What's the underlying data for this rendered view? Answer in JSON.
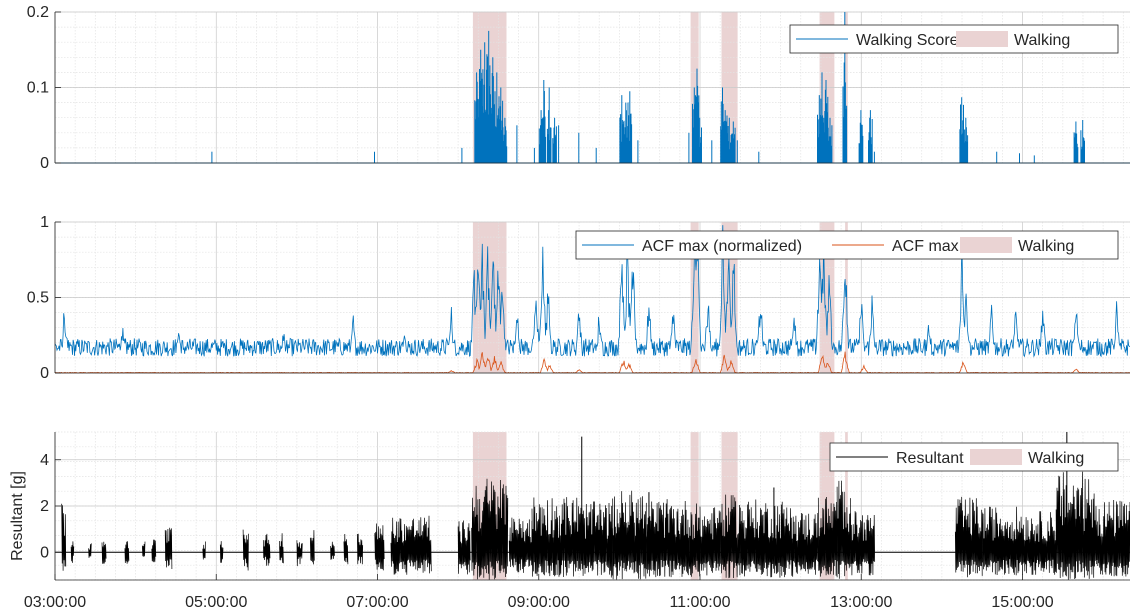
{
  "chart_data": [
    {
      "type": "line",
      "xlim": [
        "03:00:00",
        "16:20:00"
      ],
      "ylim": [
        0,
        0.2
      ],
      "yticks": [
        "0",
        "0.1",
        "0.2"
      ],
      "ytick_values": [
        0,
        0.1,
        0.2
      ],
      "ylabel": "",
      "grid": true,
      "legend_placement": "top-right",
      "legend": [
        "Walking Score",
        "Walking"
      ],
      "walking_intervals": [
        [
          "08:11",
          "08:36"
        ],
        [
          "10:53",
          "10:59"
        ],
        [
          "11:16",
          "11:28"
        ],
        [
          "12:29",
          "12:40"
        ],
        [
          "12:48",
          "12:50"
        ]
      ],
      "series": [
        {
          "name": "Walking Score",
          "color": "#0072BD",
          "peaks": [
            [
              "04:57",
              0.015
            ],
            [
              "06:58",
              0.015
            ],
            [
              "08:03",
              0.02
            ],
            [
              "08:14",
              0.12
            ],
            [
              "08:17",
              0.15
            ],
            [
              "08:20",
              0.16
            ],
            [
              "08:23",
              0.175
            ],
            [
              "08:26",
              0.14
            ],
            [
              "08:29",
              0.12
            ],
            [
              "08:32",
              0.1
            ],
            [
              "08:35",
              0.06
            ],
            [
              "08:44",
              0.05
            ],
            [
              "08:57",
              0.02
            ],
            [
              "09:02",
              0.07
            ],
            [
              "09:04",
              0.11
            ],
            [
              "09:08",
              0.1
            ],
            [
              "09:12",
              0.06
            ],
            [
              "09:15",
              0.05
            ],
            [
              "09:30",
              0.04
            ],
            [
              "09:43",
              0.02
            ],
            [
              "10:02",
              0.09
            ],
            [
              "10:05",
              0.08
            ],
            [
              "10:08",
              0.095
            ],
            [
              "10:14",
              0.03
            ],
            [
              "10:52",
              0.04
            ],
            [
              "10:56",
              0.1
            ],
            [
              "10:58",
              0.125
            ],
            [
              "11:00",
              0.06
            ],
            [
              "11:09",
              0.03
            ],
            [
              "11:17",
              0.1
            ],
            [
              "11:19",
              0.07
            ],
            [
              "11:22",
              0.06
            ],
            [
              "11:25",
              0.055
            ],
            [
              "11:28",
              0.03
            ],
            [
              "11:44",
              0.015
            ],
            [
              "12:29",
              0.09
            ],
            [
              "12:31",
              0.12
            ],
            [
              "12:34",
              0.11
            ],
            [
              "12:37",
              0.06
            ],
            [
              "12:48",
              0.2
            ],
            [
              "13:00",
              0.07
            ],
            [
              "13:07",
              0.07
            ],
            [
              "13:10",
              0.015
            ],
            [
              "14:15",
              0.087
            ],
            [
              "14:18",
              0.06
            ],
            [
              "14:41",
              0.015
            ],
            [
              "14:58",
              0.013
            ],
            [
              "15:09",
              0.01
            ],
            [
              "15:40",
              0.055
            ],
            [
              "15:45",
              0.057
            ]
          ]
        }
      ]
    },
    {
      "type": "line",
      "xlim": [
        "03:00:00",
        "16:20:00"
      ],
      "ylim": [
        0,
        1
      ],
      "yticks": [
        "0",
        "0.5",
        "1"
      ],
      "ytick_values": [
        0,
        0.5,
        1
      ],
      "ylabel": "",
      "grid": true,
      "legend_placement": "top-right",
      "legend": [
        "ACF max (normalized)",
        "ACF max",
        "Walking"
      ],
      "walking_intervals": [
        [
          "08:11",
          "08:36"
        ],
        [
          "10:53",
          "10:59"
        ],
        [
          "11:16",
          "11:28"
        ],
        [
          "12:29",
          "12:40"
        ],
        [
          "12:48",
          "12:50"
        ]
      ],
      "series": [
        {
          "name": "ACF max (normalized)",
          "color": "#0072BD",
          "baseline": 0.17,
          "peaks": [
            [
              "03:07",
              0.42
            ],
            [
              "03:50",
              0.3
            ],
            [
              "04:32",
              0.3
            ],
            [
              "05:50",
              0.27
            ],
            [
              "06:42",
              0.35
            ],
            [
              "07:20",
              0.33
            ],
            [
              "07:55",
              0.4
            ],
            [
              "08:12",
              0.7
            ],
            [
              "08:15",
              0.8
            ],
            [
              "08:18",
              0.88
            ],
            [
              "08:22",
              0.9
            ],
            [
              "08:26",
              0.86
            ],
            [
              "08:30",
              0.78
            ],
            [
              "08:33",
              0.65
            ],
            [
              "08:44",
              0.5
            ],
            [
              "08:58",
              0.55
            ],
            [
              "09:03",
              0.8
            ],
            [
              "09:07",
              0.6
            ],
            [
              "09:30",
              0.48
            ],
            [
              "09:45",
              0.4
            ],
            [
              "10:02",
              0.9
            ],
            [
              "10:06",
              0.85
            ],
            [
              "10:10",
              0.75
            ],
            [
              "10:22",
              0.5
            ],
            [
              "10:40",
              0.45
            ],
            [
              "10:56",
              0.95
            ],
            [
              "10:58",
              0.98
            ],
            [
              "11:06",
              0.55
            ],
            [
              "11:17",
              0.95
            ],
            [
              "11:21",
              0.9
            ],
            [
              "11:25",
              0.85
            ],
            [
              "11:45",
              0.5
            ],
            [
              "12:10",
              0.45
            ],
            [
              "12:29",
              0.85
            ],
            [
              "12:32",
              0.95
            ],
            [
              "12:36",
              0.7
            ],
            [
              "12:48",
              0.98
            ],
            [
              "13:00",
              0.5
            ],
            [
              "13:08",
              0.5
            ],
            [
              "13:50",
              0.3
            ],
            [
              "14:15",
              0.88
            ],
            [
              "14:18",
              0.6
            ],
            [
              "14:37",
              0.48
            ],
            [
              "14:55",
              0.4
            ],
            [
              "15:15",
              0.45
            ],
            [
              "15:40",
              0.42
            ],
            [
              "16:10",
              0.45
            ]
          ]
        },
        {
          "name": "ACF max",
          "color": "#D95319",
          "baseline": 0.0,
          "peaks": [
            [
              "07:55",
              0.02
            ],
            [
              "08:14",
              0.1
            ],
            [
              "08:18",
              0.15
            ],
            [
              "08:22",
              0.15
            ],
            [
              "08:27",
              0.12
            ],
            [
              "08:32",
              0.08
            ],
            [
              "09:04",
              0.1
            ],
            [
              "09:08",
              0.06
            ],
            [
              "09:30",
              0.03
            ],
            [
              "10:03",
              0.1
            ],
            [
              "10:07",
              0.08
            ],
            [
              "10:57",
              0.12
            ],
            [
              "11:18",
              0.12
            ],
            [
              "11:23",
              0.1
            ],
            [
              "12:31",
              0.14
            ],
            [
              "12:35",
              0.09
            ],
            [
              "12:48",
              0.16
            ],
            [
              "13:02",
              0.05
            ],
            [
              "14:16",
              0.1
            ],
            [
              "15:40",
              0.03
            ]
          ]
        }
      ]
    },
    {
      "type": "line",
      "xlim": [
        "03:00:00",
        "16:20:00"
      ],
      "ylim": [
        -1.2,
        5.2
      ],
      "yticks": [
        "0",
        "2",
        "4"
      ],
      "ytick_values": [
        0,
        2,
        4
      ],
      "ylabel": "Resultant [g]",
      "grid": true,
      "legend_placement": "top-right",
      "legend": [
        "Resultant",
        "Walking"
      ],
      "walking_intervals": [
        [
          "08:11",
          "08:36"
        ],
        [
          "10:53",
          "10:59"
        ],
        [
          "11:16",
          "11:28"
        ],
        [
          "12:29",
          "12:40"
        ],
        [
          "12:48",
          "12:50"
        ]
      ],
      "xticks": [
        "03:00:00",
        "05:00:00",
        "07:00:00",
        "09:00:00",
        "11:00:00",
        "13:00:00",
        "15:00:00"
      ],
      "series": [
        {
          "name": "Resultant",
          "color": "#000000",
          "bursts": [
            [
              "03:05",
              "03:08",
              2.1,
              -0.9
            ],
            [
              "03:12",
              "03:14",
              0.6,
              -0.5
            ],
            [
              "03:25",
              "03:27",
              0.4,
              -0.3
            ],
            [
              "03:35",
              "03:38",
              0.7,
              -0.6
            ],
            [
              "03:52",
              "03:55",
              0.5,
              -0.5
            ],
            [
              "04:05",
              "04:07",
              0.5,
              -0.4
            ],
            [
              "04:12",
              "04:15",
              0.6,
              -0.5
            ],
            [
              "04:22",
              "04:27",
              1.1,
              -0.9
            ],
            [
              "04:50",
              "04:52",
              0.6,
              -0.4
            ],
            [
              "05:03",
              "05:05",
              0.7,
              -0.5
            ],
            [
              "05:20",
              "05:24",
              1.0,
              -0.8
            ],
            [
              "05:35",
              "05:40",
              0.8,
              -0.6
            ],
            [
              "05:47",
              "05:50",
              0.9,
              -0.6
            ],
            [
              "06:00",
              "06:04",
              0.6,
              -0.6
            ],
            [
              "06:10",
              "06:13",
              1.0,
              -0.7
            ],
            [
              "06:25",
              "06:28",
              0.5,
              -0.4
            ],
            [
              "06:35",
              "06:38",
              1.2,
              -0.8
            ],
            [
              "06:45",
              "06:49",
              0.9,
              -0.6
            ],
            [
              "06:58",
              "07:05",
              1.3,
              -0.9
            ],
            [
              "07:10",
              "07:40",
              1.6,
              -1.0
            ],
            [
              "08:00",
              "08:09",
              1.4,
              -1.0
            ],
            [
              "08:10",
              "08:37",
              3.3,
              -1.2
            ],
            [
              "08:38",
              "08:55",
              1.5,
              -0.9
            ],
            [
              "08:55",
              "09:30",
              2.5,
              -1.1
            ],
            [
              "09:30",
              "09:55",
              2.2,
              -1.1
            ],
            [
              "09:55",
              "10:20",
              2.7,
              -1.2
            ],
            [
              "10:20",
              "10:52",
              2.3,
              -1.1
            ],
            [
              "10:52",
              "11:00",
              2.2,
              -1.2
            ],
            [
              "11:00",
              "11:15",
              2.0,
              -1.0
            ],
            [
              "11:15",
              "11:30",
              2.5,
              -1.2
            ],
            [
              "11:30",
              "12:10",
              2.3,
              -1.1
            ],
            [
              "12:10",
              "12:28",
              1.8,
              -1.0
            ],
            [
              "12:28",
              "12:42",
              2.5,
              -1.1
            ],
            [
              "12:42",
              "12:52",
              3.3,
              -1.2
            ],
            [
              "12:52",
              "13:10",
              1.8,
              -1.0
            ],
            [
              "14:10",
              "14:30",
              2.4,
              -1.1
            ],
            [
              "14:30",
              "15:00",
              2.0,
              -1.0
            ],
            [
              "15:00",
              "15:25",
              1.8,
              -1.0
            ],
            [
              "15:25",
              "15:55",
              3.5,
              -1.2
            ],
            [
              "15:55",
              "16:20",
              2.3,
              -1.1
            ]
          ],
          "spikes": [
            [
              "09:32",
              5.0
            ],
            [
              "15:33",
              5.2
            ],
            [
              "11:55",
              2.8
            ],
            [
              "10:22",
              2.6
            ]
          ]
        }
      ]
    }
  ]
}
